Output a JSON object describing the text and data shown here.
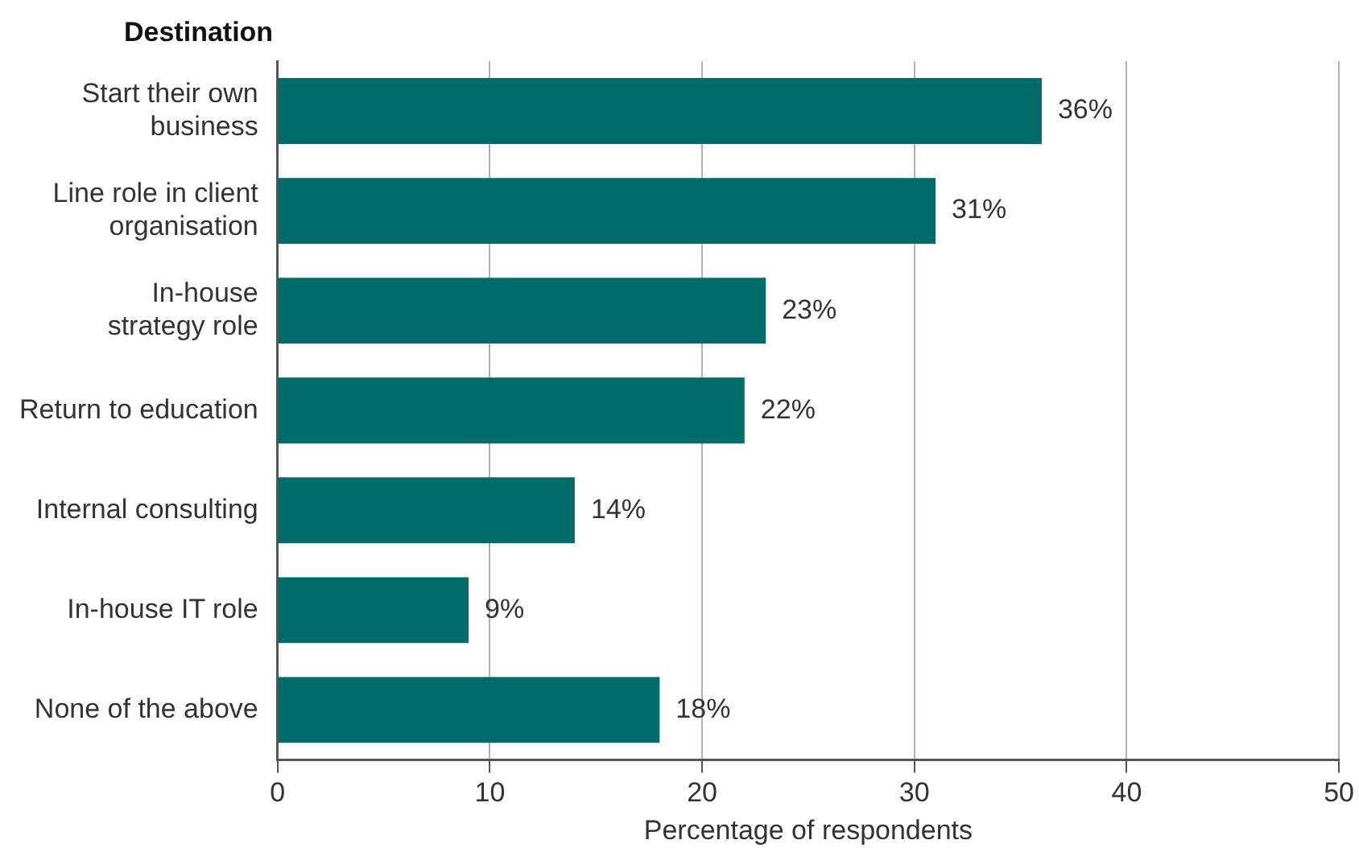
{
  "chart_data": {
    "type": "bar",
    "orientation": "horizontal",
    "ylabel": "Destination",
    "xlabel": "Percentage of respondents",
    "categories": [
      "Start their own\nbusiness",
      "Line role in client\norganisation",
      "In-house\nstrategy role",
      "Return to education",
      "Internal consulting",
      "In-house IT role",
      "None of the above"
    ],
    "values": [
      36,
      31,
      23,
      22,
      14,
      9,
      18
    ],
    "value_labels": [
      "36%",
      "31%",
      "23%",
      "22%",
      "14%",
      "9%",
      "18%"
    ],
    "color": "#006b6b",
    "xlim": [
      0,
      50
    ],
    "xticks": [
      0,
      10,
      20,
      30,
      40,
      50
    ],
    "grid": "x",
    "legend": false
  }
}
